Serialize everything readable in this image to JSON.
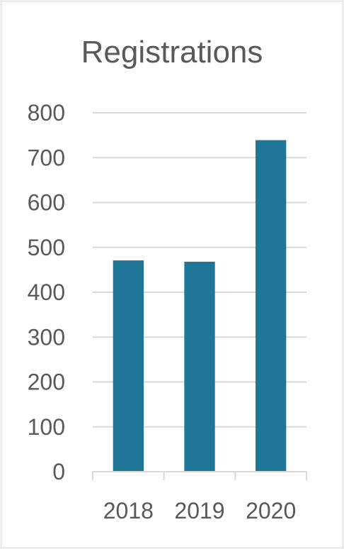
{
  "chart_data": {
    "type": "bar",
    "title": "Registrations",
    "xlabel": "",
    "ylabel": "",
    "categories": [
      "2018",
      "2019",
      "2020"
    ],
    "series": [
      {
        "values": [
          471,
          468,
          739
        ]
      }
    ],
    "ylim": [
      0,
      800
    ],
    "yticks": [
      "0",
      "100",
      "200",
      "300",
      "400",
      "500",
      "600",
      "700",
      "800"
    ],
    "grid": true,
    "legend": "none",
    "colors": {
      "bar": "#1f7696",
      "gridline": "#d9d9d9",
      "axis": "#d9d9d9",
      "text": "#595959"
    }
  }
}
